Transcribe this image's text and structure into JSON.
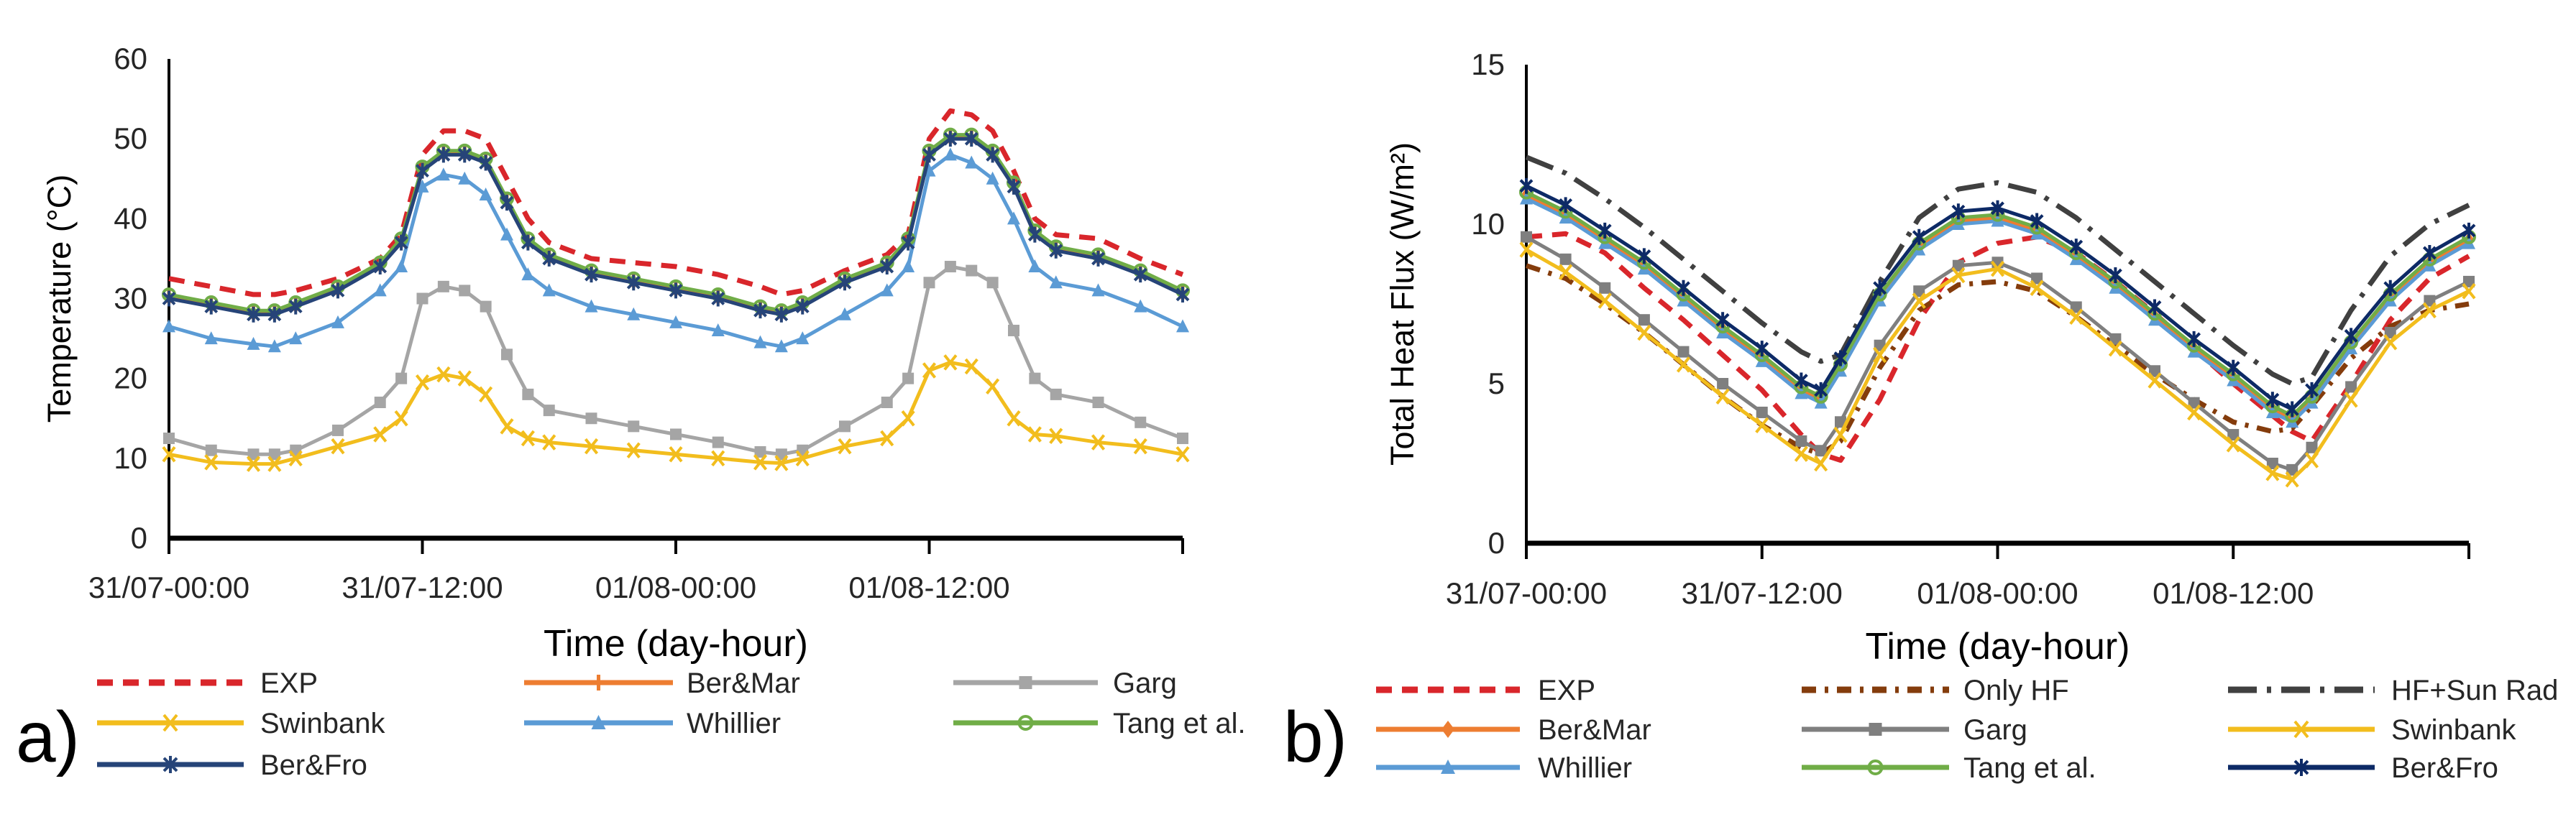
{
  "chart_data": [
    {
      "type": "line",
      "panel_label": "a)",
      "xlabel": "Time (day-hour)",
      "ylabel": "Temperature (°C)",
      "x_unit": "hours from 31/07-00:00",
      "xlim": [
        0,
        48
      ],
      "ylim": [
        0,
        60
      ],
      "yticks": [
        0,
        10,
        20,
        30,
        40,
        50,
        60
      ],
      "xticks": [
        0,
        12,
        24,
        36,
        48
      ],
      "xtick_labels": [
        "31/07-00:00",
        "31/07-12:00",
        "01/08-00:00",
        "01/08-12:00",
        ""
      ],
      "grid": false,
      "legend_position": "bottom",
      "x": [
        0,
        2,
        4,
        5,
        6,
        8,
        10,
        11,
        12,
        13,
        14,
        15,
        16,
        17,
        18,
        20,
        22,
        24,
        26,
        28,
        29,
        30,
        32,
        34,
        35,
        36,
        37,
        38,
        39,
        40,
        41,
        42,
        44,
        46,
        48
      ],
      "series": [
        {
          "name": "EXP",
          "color": "#d9262b",
          "dash": "dashed",
          "marker": "none",
          "values": [
            32.5,
            31.5,
            30.5,
            30.5,
            31,
            32.5,
            35,
            38,
            48,
            51,
            51,
            50,
            45,
            40,
            37,
            35,
            34.5,
            34,
            33,
            31.5,
            30.5,
            31,
            33.5,
            35.5,
            38,
            50,
            53.5,
            53,
            51,
            46,
            40,
            38,
            37.5,
            35,
            33
          ]
        },
        {
          "name": "Ber&Mar",
          "color": "#ed7d31",
          "dash": "solid",
          "marker": "plus",
          "values": [
            30.3,
            29.3,
            28.3,
            28.3,
            29.3,
            31.3,
            34.3,
            37.3,
            46.3,
            48.3,
            48.3,
            47.3,
            42.3,
            37.3,
            35.3,
            33.3,
            32.3,
            31.3,
            30.3,
            28.8,
            28.3,
            29.3,
            32.3,
            34.3,
            37.3,
            48.3,
            50.3,
            50.3,
            48.3,
            44.3,
            38.3,
            36.3,
            35.3,
            33.3,
            30.8
          ]
        },
        {
          "name": "Garg",
          "color": "#a5a5a5",
          "dash": "solid",
          "marker": "square",
          "values": [
            12.5,
            11,
            10.5,
            10.5,
            11,
            13.5,
            17,
            20,
            30,
            31.5,
            31,
            29,
            23,
            18,
            16,
            15,
            14,
            13,
            12,
            10.8,
            10.5,
            11,
            14,
            17,
            20,
            32,
            34,
            33.5,
            32,
            26,
            20,
            18,
            17,
            14.5,
            12.5
          ]
        },
        {
          "name": "Swinbank",
          "color": "#f2bd1d",
          "dash": "solid",
          "marker": "x",
          "values": [
            10.5,
            9.5,
            9.3,
            9.3,
            10,
            11.5,
            13,
            15,
            19.5,
            20.5,
            20,
            18,
            14,
            12.5,
            12,
            11.5,
            11,
            10.5,
            10,
            9.5,
            9.4,
            10,
            11.5,
            12.5,
            15,
            21,
            22,
            21.5,
            19,
            15,
            13,
            12.8,
            12,
            11.5,
            10.5
          ]
        },
        {
          "name": "Whillier",
          "color": "#5b9bd5",
          "dash": "solid",
          "marker": "triangle",
          "values": [
            26.5,
            25,
            24.3,
            24,
            25,
            27,
            31,
            34,
            44,
            45.5,
            45,
            43,
            38,
            33,
            31,
            29,
            28,
            27,
            26,
            24.5,
            24,
            25,
            28,
            31,
            34,
            46,
            48,
            47,
            45,
            40,
            34,
            32,
            31,
            29,
            26.5
          ]
        },
        {
          "name": "Tang et al.",
          "color": "#70ad47",
          "dash": "solid",
          "marker": "circle",
          "values": [
            30.5,
            29.5,
            28.5,
            28.5,
            29.5,
            31.5,
            34.5,
            37.5,
            46.5,
            48.5,
            48.5,
            47.5,
            42.5,
            37.5,
            35.5,
            33.5,
            32.5,
            31.5,
            30.5,
            29,
            28.5,
            29.5,
            32.5,
            34.5,
            37.5,
            48.5,
            50.5,
            50.5,
            48.5,
            44.5,
            38.5,
            36.5,
            35.5,
            33.5,
            31
          ]
        },
        {
          "name": "Ber&Fro",
          "color": "#264478",
          "dash": "solid",
          "marker": "star",
          "values": [
            30,
            29,
            28,
            28,
            29,
            31,
            34,
            37,
            46,
            48,
            48,
            47,
            42,
            37,
            35,
            33,
            32,
            31,
            30,
            28.5,
            28,
            29,
            32,
            34,
            37,
            48,
            50,
            50,
            48,
            44,
            38,
            36,
            35,
            33,
            30.5
          ]
        }
      ]
    },
    {
      "type": "line",
      "panel_label": "b)",
      "xlabel": "Time (day-hour)",
      "ylabel": "Total Heat Flux (W/m²)",
      "x_unit": "hours from 31/07-00:00",
      "xlim": [
        0,
        48
      ],
      "ylim": [
        0,
        15
      ],
      "yticks": [
        0,
        5,
        10,
        15
      ],
      "xticks": [
        0,
        12,
        24,
        36,
        48
      ],
      "xtick_labels": [
        "31/07-00:00",
        "31/07-12:00",
        "01/08-00:00",
        "01/08-12:00",
        ""
      ],
      "grid": false,
      "legend_position": "bottom",
      "x": [
        0,
        2,
        4,
        6,
        8,
        10,
        12,
        14,
        15,
        16,
        18,
        20,
        22,
        24,
        26,
        28,
        30,
        32,
        34,
        36,
        38,
        39,
        40,
        42,
        44,
        46,
        48
      ],
      "series": [
        {
          "name": "EXP",
          "color": "#d9262b",
          "dash": "dashed",
          "marker": "none",
          "values": [
            9.6,
            9.7,
            9.1,
            8.0,
            7.0,
            5.9,
            4.8,
            3.4,
            2.8,
            2.6,
            4.5,
            7.0,
            8.8,
            9.4,
            9.6,
            9.1,
            8.2,
            7.2,
            6.1,
            5.0,
            4.0,
            3.5,
            3.2,
            5.0,
            7.0,
            8.3,
            9.0
          ]
        },
        {
          "name": "Only HF",
          "color": "#843c0c",
          "dash": "dashdot",
          "marker": "none",
          "values": [
            8.7,
            8.3,
            7.5,
            6.6,
            5.6,
            4.6,
            3.7,
            3.0,
            2.8,
            3.2,
            5.5,
            7.3,
            8.1,
            8.2,
            7.9,
            7.1,
            6.2,
            5.3,
            4.5,
            3.8,
            3.5,
            3.6,
            4.3,
            5.8,
            6.8,
            7.3,
            7.5
          ]
        },
        {
          "name": "HF+Sun Rad",
          "color": "#404040",
          "dash": "longdashdot",
          "marker": "none",
          "values": [
            12.1,
            11.6,
            10.8,
            9.9,
            8.9,
            7.9,
            6.9,
            6.0,
            5.7,
            5.9,
            8.2,
            10.2,
            11.1,
            11.3,
            11.0,
            10.2,
            9.2,
            8.2,
            7.2,
            6.2,
            5.3,
            5.0,
            5.2,
            7.3,
            9.0,
            10.0,
            10.6
          ]
        },
        {
          "name": "Ber&Mar",
          "color": "#ed7d31",
          "dash": "solid",
          "marker": "diamond",
          "values": [
            10.9,
            10.3,
            9.5,
            8.7,
            7.7,
            6.7,
            5.8,
            4.8,
            4.5,
            5.5,
            7.7,
            9.3,
            10.1,
            10.2,
            9.8,
            9.0,
            8.1,
            7.1,
            6.1,
            5.2,
            4.2,
            3.9,
            4.5,
            6.2,
            7.7,
            8.8,
            9.5
          ]
        },
        {
          "name": "Garg",
          "color": "#7f7f7f",
          "dash": "solid",
          "marker": "square",
          "values": [
            9.6,
            8.9,
            8.0,
            7.0,
            6.0,
            5.0,
            4.1,
            3.2,
            2.9,
            3.8,
            6.2,
            7.9,
            8.7,
            8.8,
            8.3,
            7.4,
            6.4,
            5.4,
            4.4,
            3.4,
            2.5,
            2.3,
            3.0,
            4.9,
            6.6,
            7.6,
            8.2
          ]
        },
        {
          "name": "Swinbank",
          "color": "#f2bd1d",
          "dash": "solid",
          "marker": "x",
          "values": [
            9.2,
            8.5,
            7.6,
            6.6,
            5.6,
            4.6,
            3.7,
            2.8,
            2.5,
            3.4,
            5.9,
            7.6,
            8.4,
            8.6,
            8.0,
            7.1,
            6.1,
            5.1,
            4.1,
            3.1,
            2.2,
            2.0,
            2.6,
            4.5,
            6.3,
            7.3,
            7.9
          ]
        },
        {
          "name": "Whillier",
          "color": "#5b9bd5",
          "dash": "solid",
          "marker": "triangle",
          "values": [
            10.8,
            10.2,
            9.4,
            8.6,
            7.6,
            6.6,
            5.7,
            4.7,
            4.4,
            5.4,
            7.6,
            9.2,
            10.0,
            10.1,
            9.7,
            8.9,
            8.0,
            7.0,
            6.0,
            5.1,
            4.1,
            3.8,
            4.4,
            6.1,
            7.6,
            8.7,
            9.4
          ]
        },
        {
          "name": "Tang et al.",
          "color": "#70ad47",
          "dash": "solid",
          "marker": "circle",
          "values": [
            11.0,
            10.4,
            9.6,
            8.8,
            7.8,
            6.8,
            5.9,
            4.9,
            4.6,
            5.6,
            7.8,
            9.4,
            10.2,
            10.3,
            9.9,
            9.1,
            8.2,
            7.2,
            6.2,
            5.3,
            4.3,
            4.0,
            4.6,
            6.3,
            7.8,
            8.9,
            9.6
          ]
        },
        {
          "name": "Ber&Fro",
          "color": "#0d2a66",
          "dash": "solid",
          "marker": "star",
          "values": [
            11.2,
            10.6,
            9.8,
            9.0,
            8.0,
            7.0,
            6.1,
            5.1,
            4.8,
            5.8,
            8.0,
            9.6,
            10.4,
            10.5,
            10.1,
            9.3,
            8.4,
            7.4,
            6.4,
            5.5,
            4.5,
            4.2,
            4.8,
            6.5,
            8.0,
            9.1,
            9.8
          ]
        }
      ]
    }
  ]
}
